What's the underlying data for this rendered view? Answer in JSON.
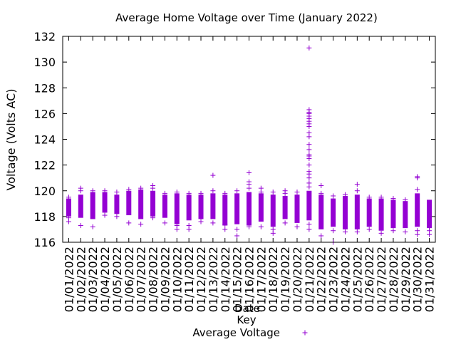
{
  "chart_data": {
    "type": "scatter",
    "title": "Average Home Voltage over Time (January 2022)",
    "xlabel": "Date",
    "ylabel": "Voltage (Volts AC)",
    "ylim": [
      116,
      132
    ],
    "yticks": [
      116,
      118,
      120,
      122,
      124,
      126,
      128,
      130,
      132
    ],
    "grid": false,
    "legend": {
      "title": "Key",
      "placement": "bottom-center",
      "entries": [
        "Average Voltage"
      ]
    },
    "colors": {
      "series": "#9400d3",
      "axis": "#000000"
    },
    "categories": [
      "01/01/2022",
      "01/02/2022",
      "01/03/2022",
      "01/04/2022",
      "01/05/2022",
      "01/06/2022",
      "01/07/2022",
      "01/08/2022",
      "01/09/2022",
      "01/10/2022",
      "01/11/2022",
      "01/12/2022",
      "01/13/2022",
      "01/14/2022",
      "01/15/2022",
      "01/16/2022",
      "01/17/2022",
      "01/18/2022",
      "01/19/2022",
      "01/20/2022",
      "01/21/2022",
      "01/22/2022",
      "01/23/2022",
      "01/24/2022",
      "01/25/2022",
      "01/26/2022",
      "01/27/2022",
      "01/28/2022",
      "01/29/2022",
      "01/30/2022",
      "01/31/2022"
    ],
    "series": [
      {
        "name": "Average Voltage",
        "points": [
          {
            "date": "01/01/2022",
            "dense_range": [
              118.0,
              119.4
            ],
            "outliers": [
              117.6,
              117.9,
              119.5
            ]
          },
          {
            "date": "01/02/2022",
            "dense_range": [
              117.9,
              119.7
            ],
            "outliers": [
              117.3,
              120.0,
              120.2
            ]
          },
          {
            "date": "01/03/2022",
            "dense_range": [
              117.8,
              119.9
            ],
            "outliers": [
              117.2,
              120.0
            ]
          },
          {
            "date": "01/04/2022",
            "dense_range": [
              118.3,
              119.9
            ],
            "outliers": [
              118.1,
              120.0
            ]
          },
          {
            "date": "01/05/2022",
            "dense_range": [
              118.2,
              119.7
            ],
            "outliers": [
              118.0,
              119.9
            ]
          },
          {
            "date": "01/06/2022",
            "dense_range": [
              118.1,
              120.0
            ],
            "outliers": [
              117.5,
              120.1
            ]
          },
          {
            "date": "01/07/2022",
            "dense_range": [
              117.8,
              120.1
            ],
            "outliers": [
              117.4,
              120.2
            ]
          },
          {
            "date": "01/08/2022",
            "dense_range": [
              118.0,
              120.0
            ],
            "outliers": [
              117.9,
              120.2,
              120.4
            ]
          },
          {
            "date": "01/09/2022",
            "dense_range": [
              117.9,
              119.7
            ],
            "outliers": [
              117.5,
              119.8
            ]
          },
          {
            "date": "01/10/2022",
            "dense_range": [
              117.4,
              119.8
            ],
            "outliers": [
              117.0,
              117.3,
              119.9
            ]
          },
          {
            "date": "01/11/2022",
            "dense_range": [
              117.7,
              119.7
            ],
            "outliers": [
              117.0,
              117.3,
              119.8
            ]
          },
          {
            "date": "01/12/2022",
            "dense_range": [
              117.8,
              119.7
            ],
            "outliers": [
              117.6,
              119.8
            ]
          },
          {
            "date": "01/13/2022",
            "dense_range": [
              117.8,
              119.8
            ],
            "outliers": [
              117.5,
              120.0,
              121.2
            ]
          },
          {
            "date": "01/14/2022",
            "dense_range": [
              117.3,
              119.7
            ],
            "outliers": [
              117.0,
              117.4,
              119.8
            ]
          },
          {
            "date": "01/15/2022",
            "dense_range": [
              117.4,
              119.8
            ],
            "outliers": [
              116.5,
              117.0,
              120.0
            ]
          },
          {
            "date": "01/16/2022",
            "dense_range": [
              117.3,
              119.9
            ],
            "outliers": [
              117.2,
              120.2,
              120.5,
              120.7,
              121.4
            ]
          },
          {
            "date": "01/17/2022",
            "dense_range": [
              117.6,
              119.8
            ],
            "outliers": [
              117.2,
              119.9,
              120.2
            ]
          },
          {
            "date": "01/18/2022",
            "dense_range": [
              117.2,
              119.7
            ],
            "outliers": [
              116.7,
              117.0,
              119.9
            ]
          },
          {
            "date": "01/19/2022",
            "dense_range": [
              117.8,
              119.6
            ],
            "outliers": [
              117.5,
              119.8,
              120.0
            ]
          },
          {
            "date": "01/20/2022",
            "dense_range": [
              117.5,
              119.7
            ],
            "outliers": [
              117.2,
              119.9
            ]
          },
          {
            "date": "01/21/2022",
            "dense_range": [
              117.7,
              120.0
            ],
            "outliers": [
              117.0,
              117.4,
              120.3,
              120.6,
              121.0,
              121.3,
              121.5,
              122.0,
              122.5,
              122.7,
              122.8,
              123.2,
              123.6,
              124.2,
              124.5,
              125.0,
              125.2,
              125.4,
              125.6,
              125.8,
              126.0,
              126.1,
              126.3,
              131.1
            ]
          },
          {
            "date": "01/22/2022",
            "dense_range": [
              117.0,
              119.7
            ],
            "outliers": [
              116.5,
              119.8,
              120.4
            ]
          },
          {
            "date": "01/23/2022",
            "dense_range": [
              117.2,
              119.4
            ],
            "outliers": [
              116.9,
              119.6,
              116.0
            ]
          },
          {
            "date": "01/24/2022",
            "dense_range": [
              117.0,
              119.6
            ],
            "outliers": [
              116.8,
              119.7
            ]
          },
          {
            "date": "01/25/2022",
            "dense_range": [
              117.0,
              119.7
            ],
            "outliers": [
              116.8,
              120.0,
              120.5
            ]
          },
          {
            "date": "01/26/2022",
            "dense_range": [
              117.2,
              119.4
            ],
            "outliers": [
              117.0,
              119.5
            ]
          },
          {
            "date": "01/27/2022",
            "dense_range": [
              116.9,
              119.4
            ],
            "outliers": [
              116.7,
              119.5
            ]
          },
          {
            "date": "01/28/2022",
            "dense_range": [
              117.1,
              119.3
            ],
            "outliers": [
              116.9,
              119.4
            ]
          },
          {
            "date": "01/29/2022",
            "dense_range": [
              117.1,
              119.2
            ],
            "outliers": [
              116.8,
              119.3
            ]
          },
          {
            "date": "01/30/2022",
            "dense_range": [
              117.2,
              119.8
            ],
            "outliers": [
              116.6,
              116.9,
              120.1,
              121.0,
              121.1
            ]
          },
          {
            "date": "01/31/2022",
            "dense_range": [
              117.1,
              119.3
            ],
            "outliers": [
              116.6,
              116.9,
              117.2,
              117.5,
              118.3
            ]
          }
        ]
      }
    ]
  }
}
